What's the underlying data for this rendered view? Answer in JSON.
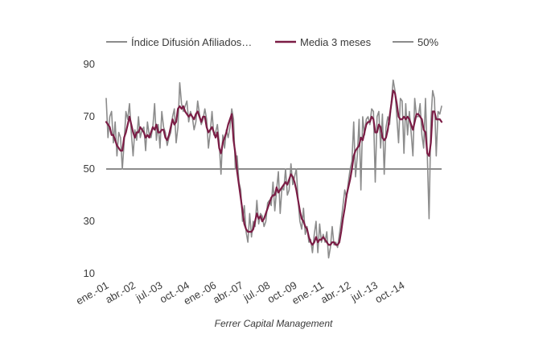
{
  "chart_data": {
    "type": "line",
    "title": "",
    "xlabel": "",
    "ylabel": "",
    "ylim": [
      10,
      90
    ],
    "yticks": [
      10,
      30,
      50,
      70,
      90
    ],
    "x_start": "2001-01",
    "x_tick_labels": [
      "ene.-01",
      "abr.-02",
      "jul.-03",
      "oct.-04",
      "ene.-06",
      "abr.-07",
      "jul.-08",
      "oct.-09",
      "ene.-11",
      "abr.-12",
      "jul.-13",
      "oct.-14"
    ],
    "x_tick_months": [
      "2001-01",
      "2002-04",
      "2003-07",
      "2004-10",
      "2006-01",
      "2007-04",
      "2008-07",
      "2009-10",
      "2011-01",
      "2012-04",
      "2013-07",
      "2014-10"
    ],
    "grid": false,
    "legend_position": "top",
    "series": [
      {
        "name": "Índice Difusión Afiliados…",
        "color": "#8c8c8c",
        "values": [
          77,
          62,
          70,
          72,
          60,
          68,
          55,
          64,
          62,
          50,
          60,
          72,
          69,
          75,
          64,
          55,
          65,
          61,
          70,
          62,
          65,
          66,
          57,
          68,
          63,
          62,
          66,
          75,
          61,
          67,
          58,
          72,
          66,
          64,
          59,
          62,
          64,
          70,
          73,
          60,
          66,
          83,
          75,
          72,
          74,
          76,
          68,
          72,
          70,
          65,
          68,
          76,
          71,
          67,
          69,
          73,
          69,
          58,
          64,
          72,
          63,
          64,
          67,
          60,
          48,
          63,
          58,
          65,
          62,
          66,
          73,
          69,
          50,
          55,
          45,
          42,
          30,
          36,
          26,
          22,
          33,
          24,
          30,
          28,
          38,
          29,
          33,
          32,
          28,
          30,
          37,
          38,
          36,
          45,
          34,
          42,
          49,
          33,
          43,
          42,
          50,
          40,
          42,
          52,
          44,
          47,
          50,
          38,
          30,
          27,
          35,
          25,
          28,
          22,
          23,
          18,
          25,
          30,
          18,
          29,
          22,
          25,
          22,
          26,
          16,
          20,
          28,
          21,
          22,
          20,
          25,
          30,
          36,
          42,
          39,
          45,
          50,
          53,
          68,
          47,
          55,
          69,
          42,
          70,
          63,
          69,
          70,
          67,
          73,
          72,
          45,
          70,
          72,
          58,
          71,
          48,
          66,
          70,
          67,
          76,
          84,
          80,
          70,
          60,
          77,
          76,
          56,
          75,
          63,
          72,
          64,
          55,
          77,
          70,
          70,
          75,
          63,
          58,
          77,
          56,
          31,
          68,
          80,
          77,
          55,
          72,
          71,
          74
        ]
      },
      {
        "name": "Media 3 meses",
        "color": "#7b1c45",
        "values": [
          68,
          67,
          66,
          63,
          63,
          61,
          59,
          58,
          57,
          57,
          62,
          64,
          67,
          70,
          67,
          64,
          62,
          64,
          64,
          66,
          65,
          64,
          62,
          63,
          62,
          64,
          66,
          65,
          67,
          64,
          64,
          65,
          65,
          62,
          61,
          63,
          66,
          69,
          67,
          68,
          73,
          74,
          73,
          74,
          72,
          71,
          70,
          71,
          70,
          69,
          71,
          72,
          70,
          68,
          70,
          70,
          66,
          64,
          65,
          66,
          64,
          62,
          64,
          58,
          56,
          60,
          62,
          64,
          67,
          69,
          71,
          61,
          56,
          49,
          44,
          39,
          34,
          29,
          27,
          26,
          26,
          26,
          27,
          30,
          33,
          31,
          32,
          30,
          31,
          33,
          35,
          37,
          39,
          40,
          40,
          43,
          41,
          42,
          43,
          44,
          45,
          44,
          46,
          48,
          47,
          45,
          42,
          38,
          34,
          31,
          30,
          28,
          27,
          24,
          22,
          21,
          22,
          24,
          22,
          23,
          23,
          24,
          23,
          22,
          21,
          21,
          22,
          22,
          21,
          21,
          22,
          26,
          31,
          35,
          40,
          43,
          46,
          50,
          55,
          57,
          58,
          59,
          62,
          61,
          64,
          67,
          68,
          68,
          70,
          69,
          64,
          64,
          67,
          66,
          62,
          61,
          62,
          65,
          70,
          75,
          80,
          79,
          75,
          70,
          69,
          69,
          70,
          69,
          70,
          69,
          67,
          65,
          68,
          71,
          71,
          70,
          69,
          65,
          64,
          56,
          55,
          60,
          72,
          72,
          69,
          69,
          69,
          68
        ]
      },
      {
        "name": "50%",
        "color": "#1a1a1a",
        "values": [
          50,
          50
        ]
      }
    ]
  },
  "source": "Ferrer Capital Management"
}
